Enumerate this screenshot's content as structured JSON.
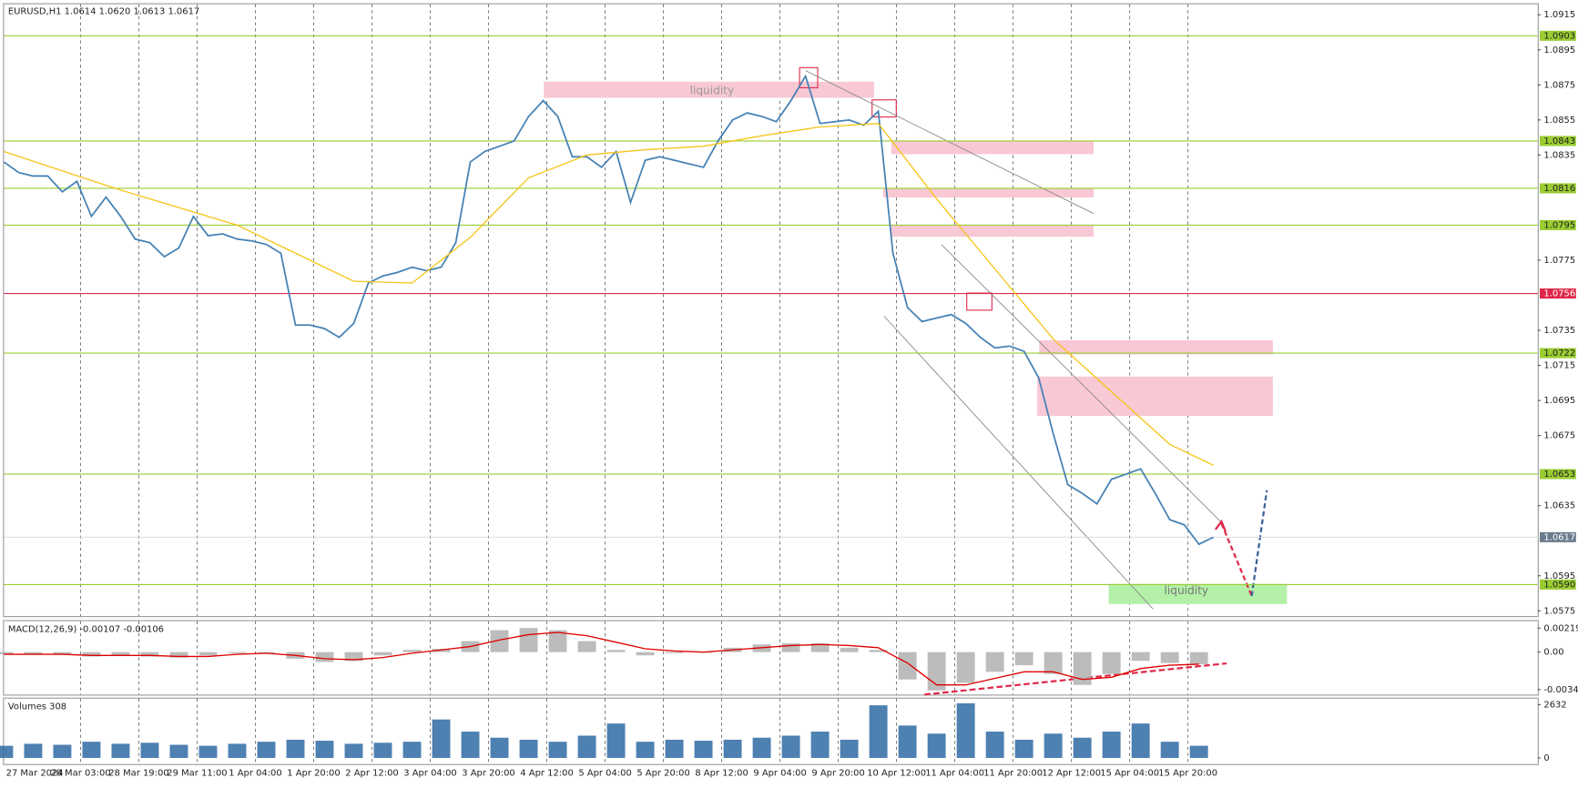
{
  "chart_data": [
    {
      "type": "line",
      "title": "EURUSD,H1  1.0614 1.0620 1.0613 1.0617",
      "x": [
        0,
        4,
        8,
        12,
        16,
        20,
        24,
        28,
        32,
        36,
        40,
        44,
        48,
        52,
        56,
        60,
        64,
        68,
        72,
        76,
        80,
        84,
        88,
        92,
        96,
        100,
        104,
        108,
        112,
        116,
        120,
        124,
        128,
        132,
        136,
        140,
        144,
        148,
        152,
        156,
        160,
        164,
        168,
        172,
        176,
        180,
        184,
        188,
        192,
        196,
        200,
        204,
        208,
        212,
        216,
        220,
        224,
        228,
        232,
        236,
        240,
        244,
        248,
        252,
        256,
        260,
        264,
        268,
        272,
        276,
        280,
        284,
        288,
        292,
        296,
        300,
        304,
        308,
        312,
        316,
        320,
        324,
        328,
        332
      ],
      "series": [
        {
          "color": "#4682b4",
          "values": [
            1.0831,
            1.0825,
            1.0823,
            1.0823,
            1.0814,
            1.082,
            1.08,
            1.0811,
            1.08,
            1.0787,
            1.0785,
            1.0777,
            1.0782,
            1.08,
            1.0789,
            1.079,
            1.0787,
            1.0786,
            1.0784,
            1.0779,
            1.0738,
            1.0738,
            1.0736,
            1.0731,
            1.0739,
            1.0762,
            1.0766,
            1.0768,
            1.0771,
            1.0769,
            1.0771,
            1.0785,
            1.0831,
            1.0837,
            1.084,
            1.0843,
            1.0857,
            1.0866,
            1.0857,
            1.0834,
            1.0834,
            1.0828,
            1.0837,
            1.0808,
            1.0832,
            1.0834,
            1.0832,
            1.083,
            1.0828,
            1.0843,
            1.0855,
            1.0859,
            1.0857,
            1.0854,
            1.0866,
            1.088,
            1.0853,
            1.0854,
            1.0855,
            1.0852,
            1.086,
            1.0779,
            1.0748,
            1.074,
            1.0742,
            1.0744,
            1.0739,
            1.0731,
            1.0725,
            1.0726,
            1.0723,
            1.0708,
            1.0676,
            1.0647,
            1.0642,
            1.0636,
            1.065,
            1.0653,
            1.0656,
            1.0642,
            1.0627,
            1.0624,
            1.0613,
            1.0617
          ]
        },
        {
          "color": "#f5c518",
          "x": [
            0,
            16,
            32,
            48,
            64,
            80,
            96,
            112,
            128,
            144,
            160,
            176,
            192,
            208,
            224,
            240,
            256,
            272,
            288,
            304,
            320,
            332
          ],
          "values": [
            1.0837,
            1.0826,
            1.0815,
            1.0805,
            1.0795,
            1.0779,
            1.0763,
            1.0762,
            1.0788,
            1.0822,
            1.0835,
            1.0838,
            1.084,
            1.0846,
            1.0851,
            1.0853,
            1.081,
            1.077,
            1.073,
            1.07,
            1.067,
            1.0658
          ]
        }
      ],
      "xlim": [
        0,
        421
      ],
      "xticks": [
        {
          "value": 0,
          "label": "27 Mar 2024"
        },
        {
          "value": 21,
          "label": "28 Mar 03:00"
        },
        {
          "value": 37,
          "label": "28 Mar 19:00"
        },
        {
          "value": 53,
          "label": "29 Mar 11:00"
        },
        {
          "value": 69,
          "label": "1 Apr 04:00"
        },
        {
          "value": 85,
          "label": "1 Apr 20:00"
        },
        {
          "value": 101,
          "label": "2 Apr 12:00"
        },
        {
          "value": 117,
          "label": "3 Apr 04:00"
        },
        {
          "value": 133,
          "label": "3 Apr 20:00"
        },
        {
          "value": 149,
          "label": "4 Apr 12:00"
        },
        {
          "value": 165,
          "label": "5 Apr 04:00"
        },
        {
          "value": 181,
          "label": "5 Apr 20:00"
        },
        {
          "value": 197,
          "label": "8 Apr 12:00"
        },
        {
          "value": 213,
          "label": "9 Apr 04:00"
        },
        {
          "value": 229,
          "label": "9 Apr 20:00"
        },
        {
          "value": 245,
          "label": "10 Apr 12:00"
        },
        {
          "value": 261,
          "label": "11 Apr 04:00"
        },
        {
          "value": 277,
          "label": "11 Apr 20:00"
        },
        {
          "value": 293,
          "label": "12 Apr 12:00"
        },
        {
          "value": 309,
          "label": "15 Apr 04:00"
        },
        {
          "value": 325,
          "label": "15 Apr 20:00"
        }
      ],
      "ylim": [
        1.0572,
        1.0921
      ],
      "yticks": [
        1.0915,
        1.0895,
        1.0875,
        1.0855,
        1.0835,
        1.0775,
        1.0735,
        1.0715,
        1.0695,
        1.0675,
        1.0635,
        1.0595,
        1.0575
      ],
      "levels": [
        {
          "value": 1.0903,
          "color": "#9acd32"
        },
        {
          "value": 1.0843,
          "color": "#9acd32"
        },
        {
          "value": 1.0816,
          "color": "#9acd32"
        },
        {
          "value": 1.0795,
          "color": "#9acd32"
        },
        {
          "value": 1.0756,
          "color": "#e0284a"
        },
        {
          "value": 1.0722,
          "color": "#9acd32"
        },
        {
          "value": 1.0653,
          "color": "#9acd32"
        },
        {
          "value": 1.059,
          "label": "1.0590",
          "color": "#9acd32"
        }
      ],
      "current_price": 1.0617,
      "annotations": [
        "liquidity",
        "liquidity"
      ],
      "grid": true
    },
    {
      "type": "bar",
      "title": "MACD(12,26,9) -0.00107 -0.00106",
      "x": [
        0,
        8,
        16,
        24,
        32,
        40,
        48,
        56,
        64,
        72,
        80,
        88,
        96,
        104,
        112,
        120,
        128,
        136,
        144,
        152,
        160,
        168,
        176,
        184,
        192,
        200,
        208,
        216,
        224,
        232,
        240,
        248,
        256,
        264,
        272,
        280,
        288,
        296,
        304,
        312,
        320,
        328
      ],
      "series": [
        {
          "color": "#b0b0b0",
          "values": [
            -0.0002,
            -0.0002,
            -0.0002,
            -0.0004,
            -0.0003,
            -0.0004,
            -0.0005,
            -0.0003,
            -0.0001,
            -0.0001,
            -0.0006,
            -0.0009,
            -0.0008,
            -0.0003,
            0.0002,
            0.0003,
            0.001,
            0.002,
            0.0022,
            0.002,
            0.001,
            0.0002,
            -0.0003,
            -0.0001,
            0,
            0.0004,
            0.0007,
            0.0008,
            0.0008,
            0.0004,
            0.0002,
            -0.0025,
            -0.0035,
            -0.0028,
            -0.0018,
            -0.0012,
            -0.002,
            -0.003,
            -0.002,
            -0.0008,
            -0.001,
            -0.0011
          ]
        },
        {
          "type": "line",
          "color": "#e00000",
          "values": [
            -0.0002,
            -0.0002,
            -0.0002,
            -0.0003,
            -0.0003,
            -0.0003,
            -0.0004,
            -0.0004,
            -0.0002,
            -0.0001,
            -0.0003,
            -0.0006,
            -0.0007,
            -0.0005,
            -0.0001,
            0.0002,
            0.0005,
            0.0011,
            0.0016,
            0.0018,
            0.0015,
            0.0009,
            0.0003,
            0.0001,
            0,
            0.0002,
            0.0004,
            0.0006,
            0.0007,
            0.0006,
            0.0004,
            -0.001,
            -0.003,
            -0.003,
            -0.0024,
            -0.0018,
            -0.0018,
            -0.0025,
            -0.0023,
            -0.0015,
            -0.0012,
            -0.0011
          ]
        }
      ],
      "ylim": [
        -0.00388,
        0.00283
      ],
      "yticks": [
        0.00219,
        {
          "value": 0,
          "label": "0.00"
        },
        -0.00342
      ]
    },
    {
      "type": "bar",
      "title": "Volumes 308",
      "x": [
        0,
        8,
        16,
        24,
        32,
        40,
        48,
        56,
        64,
        72,
        80,
        88,
        96,
        104,
        112,
        120,
        128,
        136,
        144,
        152,
        160,
        168,
        176,
        184,
        192,
        200,
        208,
        216,
        224,
        232,
        240,
        248,
        256,
        264,
        272,
        280,
        288,
        296,
        304,
        312,
        320,
        328
      ],
      "color": "#2f6aa3",
      "values": [
        600,
        700,
        650,
        800,
        700,
        750,
        650,
        600,
        700,
        800,
        900,
        850,
        700,
        750,
        800,
        1900,
        1300,
        1000,
        900,
        800,
        1100,
        1700,
        800,
        900,
        850,
        900,
        1000,
        1100,
        1300,
        900,
        2600,
        1600,
        1200,
        2700,
        1300,
        900,
        1200,
        1000,
        1300,
        1700,
        800,
        600
      ],
      "ylim": [
        -250,
        2930
      ],
      "yticks": [
        2632,
        0
      ]
    }
  ]
}
